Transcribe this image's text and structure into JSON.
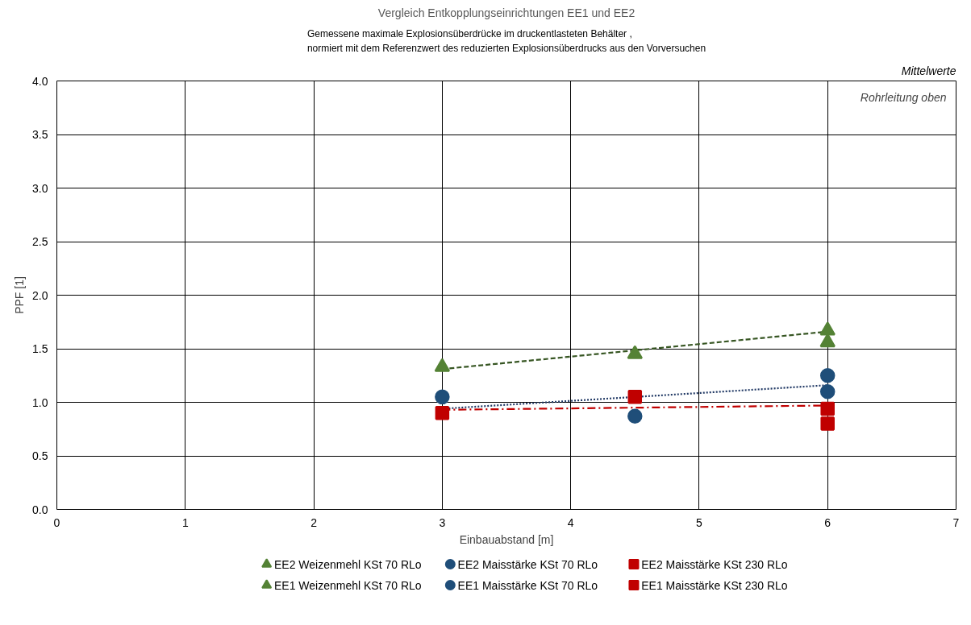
{
  "chart_data": {
    "type": "scatter",
    "title": "Vergleich Entkopplungseinrichtungen EE1 und EE2",
    "subtitle": "Gemessene maximale Explosionsüberdrücke im druckentlasteten Behälter ,\nnormiert mit dem Referenzwert des reduzierten Explosionsüberdrucks aus den Vorversuchen",
    "xlabel": "Einbauabstand [m]",
    "ylabel": "PPF [1]",
    "annotations": [
      "Mittelwerte",
      "Rohrleitung oben"
    ],
    "xlim": [
      0,
      7
    ],
    "xticks": [
      0,
      1,
      2,
      3,
      4,
      5,
      6,
      7
    ],
    "ylim": [
      0,
      4
    ],
    "yticks": [
      {
        "value": 0,
        "label": "0.0"
      },
      {
        "value": 0.5,
        "label": "0.5"
      },
      {
        "value": 1,
        "label": "1.0"
      },
      {
        "value": 1.5,
        "label": "1.5"
      },
      {
        "value": 2,
        "label": "2.0"
      },
      {
        "value": 2.5,
        "label": "2.5"
      },
      {
        "value": 3,
        "label": "3.0"
      },
      {
        "value": 3.5,
        "label": "3.5"
      },
      {
        "value": 4,
        "label": "4.0"
      }
    ],
    "grid": true,
    "legend": "bottom",
    "series": [
      {
        "type": "line",
        "color": "#375623",
        "line_style": "dashed",
        "x": [
          3,
          6
        ],
        "values": [
          1.31,
          1.66
        ]
      },
      {
        "type": "line",
        "color": "#203864",
        "line_style": "dotted",
        "x": [
          3,
          6
        ],
        "values": [
          0.94,
          1.16
        ]
      },
      {
        "type": "line",
        "color": "#c00000",
        "line_style": "dashdot",
        "x": [
          3,
          6
        ],
        "values": [
          0.93,
          0.97
        ]
      },
      {
        "name": "EE2 Weizenmehl KSt 70 RLo",
        "color": "#548235",
        "marker": "triangle",
        "x": [
          6
        ],
        "values": [
          1.56
        ]
      },
      {
        "name": "EE2 Maisstärke KSt 70 RLo",
        "color": "#1f4e79",
        "marker": "circle",
        "x": [
          6
        ],
        "values": [
          1.1
        ]
      },
      {
        "name": "EE2 Maisstärke KSt 230 RLo",
        "color": "#c00000",
        "marker": "square",
        "x": [
          6
        ],
        "values": [
          0.8
        ]
      },
      {
        "name": "EE1 Weizenmehl KSt 70 RLo",
        "color": "#548235",
        "marker": "triangle",
        "x": [
          3,
          4.5,
          6
        ],
        "values": [
          1.33,
          1.45,
          1.67
        ]
      },
      {
        "name": "EE1 Maisstärke KSt 70 RLo",
        "color": "#1f4e79",
        "marker": "circle",
        "x": [
          3,
          4.5,
          6
        ],
        "values": [
          1.05,
          0.87,
          1.25
        ]
      },
      {
        "name": "EE1 Maisstärke KSt 230 RLo",
        "color": "#c00000",
        "marker": "square",
        "x": [
          3,
          4.5,
          6
        ],
        "values": [
          0.9,
          1.05,
          0.94
        ]
      }
    ]
  }
}
